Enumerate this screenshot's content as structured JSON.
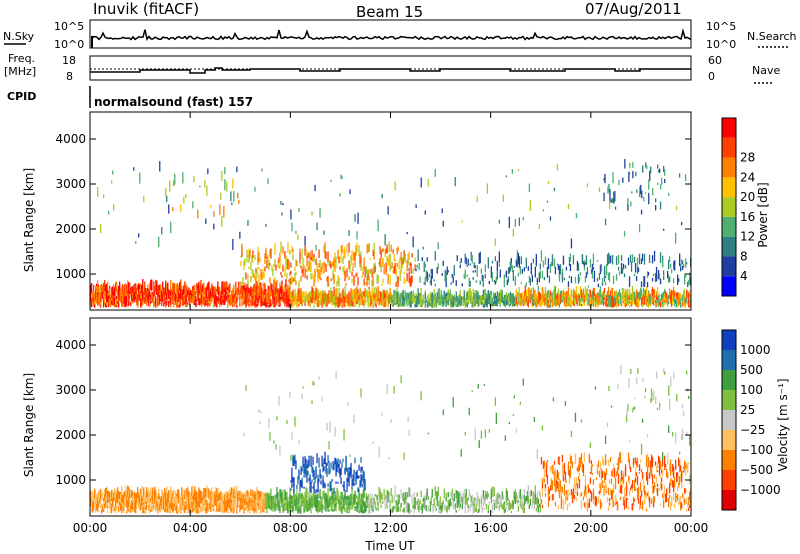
{
  "header": {
    "station": "Inuvik (fitACF)",
    "beam": "Beam 15",
    "date": "07/Aug/2011"
  },
  "noise_panel": {
    "left_label": "N.Sky",
    "right_label": "N.Search",
    "ticks": [
      "10^5",
      "10^0"
    ]
  },
  "freq_panel": {
    "left_label_1": "Freq.",
    "left_label_2": "[MHz]",
    "right_label": "Nave",
    "left_ticks": [
      "18",
      "8"
    ],
    "right_ticks": [
      "60",
      "0"
    ]
  },
  "cpid_panel": {
    "label": "CPID",
    "text": "normalsound (fast) 157"
  },
  "colors": {
    "power": [
      "#0000ff",
      "#1f3fa0",
      "#2e7f7f",
      "#4faf70",
      "#aacc22",
      "#ffc000",
      "#ff8000",
      "#ff4000",
      "#ff0000"
    ],
    "velocity": [
      "#e00000",
      "#ff4000",
      "#ff8000",
      "#ffc060",
      "#c8c8c8",
      "#80c040",
      "#40a040",
      "#1f6fb0",
      "#1040c0"
    ]
  },
  "chart_data": [
    {
      "type": "heatmap",
      "title": "Power",
      "ylabel": "Slant Range [km]",
      "xlabel": "",
      "x_tick_labels": [
        "00:00",
        "04:00",
        "08:00",
        "12:00",
        "16:00",
        "20:00",
        "00:00"
      ],
      "x_ticks_hours": [
        0,
        4,
        8,
        12,
        16,
        20,
        24
      ],
      "xlim_hours": [
        0,
        24
      ],
      "y_tick_labels": [
        "1000",
        "2000",
        "3000",
        "4000"
      ],
      "y_ticks": [
        1000,
        2000,
        3000,
        4000
      ],
      "ylim": [
        200,
        4600
      ],
      "colorbar": {
        "label": "Power [dB]",
        "levels": [
          4,
          8,
          12,
          16,
          20,
          24,
          28
        ],
        "labels": [
          "4",
          "8",
          "12",
          "16",
          "20",
          "24",
          "28"
        ]
      }
    },
    {
      "type": "heatmap",
      "title": "Velocity",
      "ylabel": "Slant Range [km]",
      "xlabel": "Time UT",
      "x_tick_labels": [
        "00:00",
        "04:00",
        "08:00",
        "12:00",
        "16:00",
        "20:00",
        "00:00"
      ],
      "x_ticks_hours": [
        0,
        4,
        8,
        12,
        16,
        20,
        24
      ],
      "xlim_hours": [
        0,
        24
      ],
      "y_tick_labels": [
        "1000",
        "2000",
        "3000",
        "4000"
      ],
      "y_ticks": [
        1000,
        2000,
        3000,
        4000
      ],
      "ylim": [
        200,
        4600
      ],
      "colorbar": {
        "label": "Velocity [m s⁻¹]",
        "labels": [
          "1000",
          "500",
          "100",
          "25",
          "−25",
          "−100",
          "−500",
          "−1000"
        ]
      }
    }
  ]
}
